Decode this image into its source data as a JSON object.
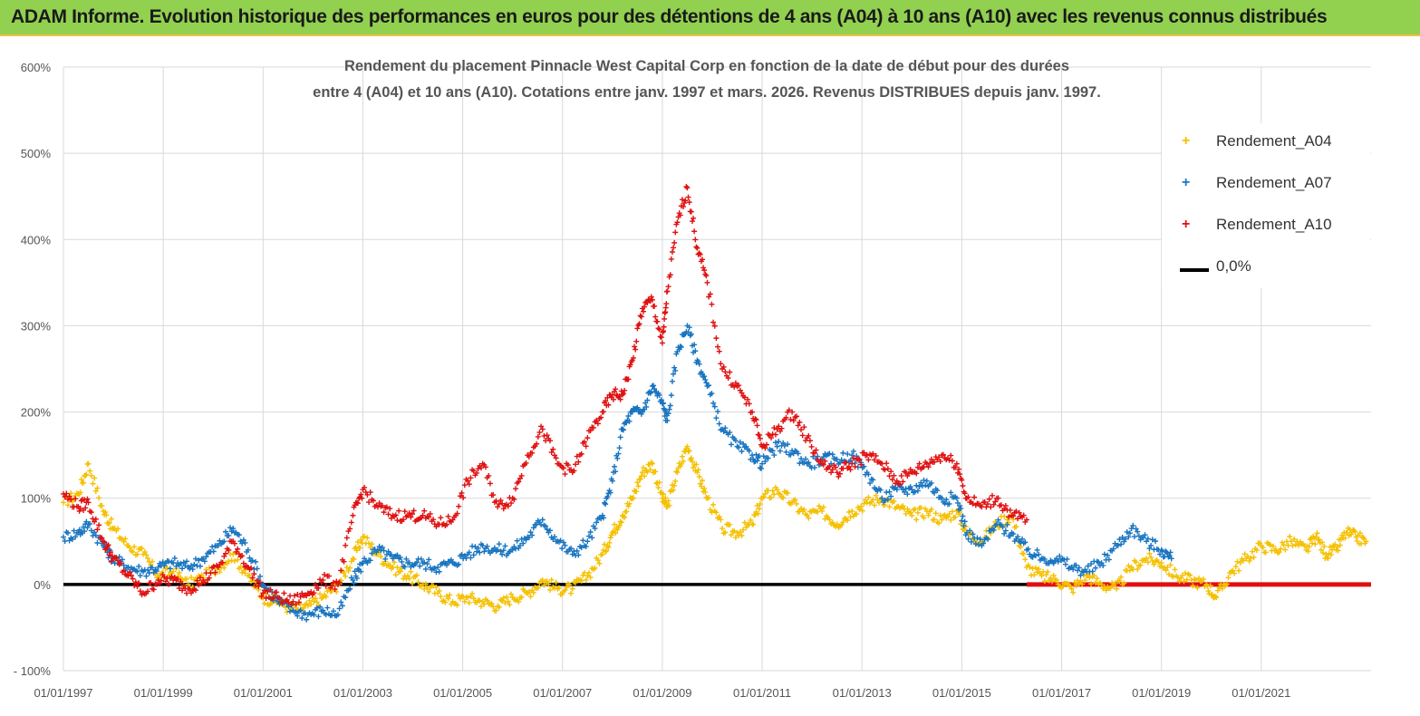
{
  "header": {
    "title": "ADAM Informe. Evolution historique des performances en euros pour des détentions de 4 ans (A04) à 10 ans (A10) avec les revenus connus distribués"
  },
  "chart_data": {
    "type": "scatter",
    "title_lines": [
      "Rendement du placement Pinnacle West Capital Corp en fonction de la date de début pour des durées",
      "entre 4 (A04) et 10 ans (A10). Cotations entre janv. 1997 et mars. 2026. Revenus DISTRIBUES depuis janv. 1997."
    ],
    "xlabel": "",
    "ylabel": "",
    "x_range": [
      1997.0,
      2023.2
    ],
    "ylim": [
      -100,
      600
    ],
    "y_ticks": [
      -100,
      0,
      100,
      200,
      300,
      400,
      500,
      600
    ],
    "y_tick_labels": [
      "- 100%",
      "0%",
      "100%",
      "200%",
      "300%",
      "400%",
      "500%",
      "600%"
    ],
    "x_ticks": [
      1997,
      1999,
      2001,
      2003,
      2005,
      2007,
      2009,
      2011,
      2013,
      2015,
      2017,
      2019,
      2021
    ],
    "x_tick_labels": [
      "01/01/1997",
      "01/01/1999",
      "01/01/2001",
      "01/01/2003",
      "01/01/2005",
      "01/01/2007",
      "01/01/2009",
      "01/01/2011",
      "01/01/2013",
      "01/01/2015",
      "01/01/2017",
      "01/01/2019",
      "01/01/2021"
    ],
    "grid": {
      "horizontal": true,
      "vertical": true
    },
    "legend_position": "top-right",
    "series": [
      {
        "name": "Rendement_A04",
        "color": "#f5c000",
        "marker": "+",
        "x": [
          1997.0,
          1997.3,
          1997.5,
          1997.8,
          1998.0,
          1998.3,
          1998.6,
          1998.9,
          1999.2,
          1999.5,
          1999.8,
          2000.1,
          2000.4,
          2000.7,
          2001.0,
          2001.3,
          2001.6,
          2001.9,
          2002.2,
          2002.5,
          2002.8,
          2003.0,
          2003.3,
          2003.6,
          2003.9,
          2004.2,
          2004.5,
          2004.8,
          2005.1,
          2005.4,
          2005.7,
          2006.0,
          2006.3,
          2006.6,
          2006.9,
          2007.2,
          2007.5,
          2007.8,
          2008.0,
          2008.2,
          2008.4,
          2008.6,
          2008.8,
          2009.0,
          2009.1,
          2009.3,
          2009.5,
          2009.7,
          2009.9,
          2010.2,
          2010.5,
          2010.8,
          2011.0,
          2011.3,
          2011.6,
          2011.9,
          2012.2,
          2012.5,
          2012.8,
          2013.1,
          2013.4,
          2013.7,
          2014.0,
          2014.3,
          2014.6,
          2014.9,
          2015.1,
          2015.4,
          2015.7,
          2016.0,
          2016.3,
          2016.6,
          2016.9,
          2017.2,
          2017.5,
          2017.8,
          2018.1,
          2018.4,
          2018.7,
          2019.0,
          2019.3,
          2019.6,
          2019.9,
          2020.1,
          2020.4,
          2020.7,
          2021.0,
          2021.3,
          2021.6,
          2021.9,
          2022.1,
          2022.3,
          2022.5,
          2022.7,
          2022.9,
          2023.1
        ],
        "y": [
          95,
          105,
          140,
          85,
          65,
          45,
          35,
          10,
          15,
          0,
          8,
          20,
          35,
          10,
          -15,
          -20,
          -30,
          -25,
          -15,
          0,
          30,
          55,
          35,
          20,
          10,
          0,
          -10,
          -20,
          -15,
          -20,
          -25,
          -15,
          -10,
          5,
          -5,
          -5,
          10,
          35,
          60,
          80,
          100,
          130,
          140,
          100,
          90,
          130,
          160,
          130,
          100,
          65,
          60,
          70,
          100,
          110,
          95,
          80,
          85,
          70,
          85,
          95,
          100,
          90,
          80,
          85,
          75,
          85,
          60,
          50,
          70,
          80,
          20,
          10,
          5,
          -5,
          10,
          0,
          -5,
          20,
          30,
          25,
          10,
          5,
          0,
          -15,
          15,
          30,
          45,
          40,
          50,
          40,
          55,
          35,
          40,
          60,
          55,
          50
        ]
      },
      {
        "name": "Rendement_A07",
        "color": "#1874c0",
        "marker": "+",
        "x": [
          1997.0,
          1997.3,
          1997.5,
          1997.8,
          1998.0,
          1998.3,
          1998.6,
          1998.9,
          1999.2,
          1999.5,
          1999.8,
          2000.1,
          2000.4,
          2000.7,
          2001.0,
          2001.3,
          2001.6,
          2001.9,
          2002.2,
          2002.5,
          2002.8,
          2003.0,
          2003.3,
          2003.6,
          2003.9,
          2004.2,
          2004.5,
          2004.8,
          2005.1,
          2005.4,
          2005.7,
          2006.0,
          2006.3,
          2006.6,
          2006.9,
          2007.2,
          2007.5,
          2007.8,
          2008.0,
          2008.2,
          2008.4,
          2008.6,
          2008.8,
          2009.0,
          2009.1,
          2009.3,
          2009.5,
          2009.7,
          2009.9,
          2010.2,
          2010.5,
          2010.8,
          2011.0,
          2011.3,
          2011.6,
          2011.9,
          2012.2,
          2012.5,
          2012.8,
          2013.1,
          2013.4,
          2013.7,
          2014.0,
          2014.3,
          2014.6,
          2014.9,
          2015.1,
          2015.4,
          2015.7,
          2016.0,
          2016.3,
          2016.6,
          2016.9,
          2017.2,
          2017.5,
          2017.8,
          2018.1,
          2018.4,
          2018.7,
          2019.0,
          2019.2
        ],
        "y": [
          55,
          60,
          70,
          45,
          30,
          20,
          15,
          20,
          25,
          20,
          30,
          45,
          65,
          40,
          0,
          -20,
          -30,
          -35,
          -30,
          -35,
          5,
          25,
          40,
          30,
          25,
          25,
          20,
          25,
          35,
          45,
          40,
          40,
          55,
          75,
          50,
          35,
          50,
          80,
          120,
          180,
          200,
          200,
          230,
          210,
          190,
          270,
          300,
          260,
          230,
          180,
          160,
          150,
          140,
          160,
          155,
          140,
          145,
          145,
          150,
          130,
          100,
          110,
          110,
          120,
          100,
          100,
          60,
          45,
          70,
          60,
          40,
          30,
          30,
          20,
          15,
          25,
          45,
          65,
          50,
          40,
          30
        ]
      },
      {
        "name": "Rendement_A10",
        "color": "#e01010",
        "marker": "+",
        "x": [
          1997.0,
          1997.3,
          1997.5,
          1997.8,
          1998.0,
          1998.3,
          1998.6,
          1998.9,
          1999.2,
          1999.5,
          1999.8,
          2000.1,
          2000.4,
          2000.7,
          2001.0,
          2001.3,
          2001.6,
          2001.9,
          2002.2,
          2002.5,
          2002.8,
          2003.0,
          2003.3,
          2003.6,
          2003.9,
          2004.2,
          2004.5,
          2004.8,
          2005.1,
          2005.4,
          2005.7,
          2006.0,
          2006.3,
          2006.6,
          2006.9,
          2007.2,
          2007.5,
          2007.8,
          2008.0,
          2008.2,
          2008.4,
          2008.6,
          2008.8,
          2009.0,
          2009.1,
          2009.3,
          2009.5,
          2009.7,
          2009.9,
          2010.2,
          2010.5,
          2010.8,
          2011.0,
          2011.3,
          2011.6,
          2011.9,
          2012.2,
          2012.5,
          2012.8,
          2013.1,
          2013.4,
          2013.7,
          2014.0,
          2014.3,
          2014.6,
          2014.9,
          2015.1,
          2015.4,
          2015.7,
          2016.0,
          2016.3
        ],
        "y": [
          105,
          90,
          95,
          50,
          30,
          10,
          -10,
          5,
          5,
          -5,
          5,
          20,
          50,
          20,
          -10,
          -15,
          -20,
          -10,
          5,
          0,
          80,
          110,
          90,
          80,
          80,
          80,
          70,
          75,
          120,
          140,
          90,
          100,
          150,
          180,
          140,
          130,
          170,
          200,
          220,
          220,
          260,
          320,
          330,
          280,
          340,
          420,
          460,
          390,
          350,
          250,
          230,
          200,
          160,
          180,
          200,
          170,
          140,
          130,
          140,
          150,
          140,
          120,
          130,
          140,
          150,
          140,
          100,
          90,
          100,
          80,
          75
        ]
      },
      {
        "name": "0,0%",
        "color": "#000000",
        "marker": "line",
        "x": [
          1997.0,
          2016.3
        ],
        "y": [
          0,
          0
        ]
      }
    ],
    "extra_series": [
      {
        "name": "Rendement_A10 (0% segment)",
        "color": "#e01010",
        "x": [
          2016.3,
          2023.2
        ],
        "y": [
          0,
          0
        ]
      }
    ]
  }
}
